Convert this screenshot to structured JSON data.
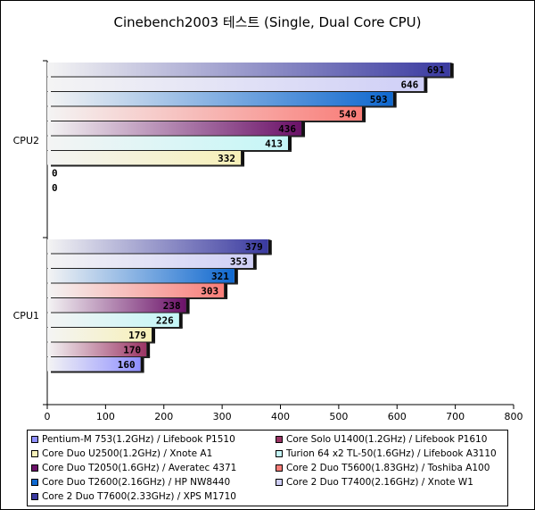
{
  "chart_data": {
    "type": "bar",
    "orientation": "horizontal",
    "title": "Cinebench2003 테스트 (Single, Dual Core CPU)",
    "xlabel": "",
    "ylabel": "",
    "xlim": [
      0,
      800
    ],
    "x_ticks": [
      "0",
      "100",
      "200",
      "300",
      "400",
      "500",
      "600",
      "700",
      "800"
    ],
    "categories": [
      "CPU2",
      "CPU1"
    ],
    "grid": false,
    "legend_position": "bottom",
    "series": [
      {
        "name": "Pentium-M 753(1.2GHz) / Lifebook P1510",
        "values": [
          0,
          160
        ],
        "labels": [
          "0",
          "160"
        ],
        "color": "#8f8fff"
      },
      {
        "name": "Core Solo U1400(1.2GHz) / Lifebook P1610",
        "values": [
          0,
          170
        ],
        "labels": [
          "0",
          "170"
        ],
        "color": "#9b3565"
      },
      {
        "name": "Core Duo U2500(1.2GHz) / Xnote A1",
        "values": [
          332,
          179
        ],
        "labels": [
          "332",
          "179"
        ],
        "color": "#f6f0b8"
      },
      {
        "name": "Turion 64 x2 TL-50(1.6GHz) / Lifebook A3110",
        "values": [
          413,
          226
        ],
        "labels": [
          "413",
          "226"
        ],
        "color": "#c4f6f7"
      },
      {
        "name": "Core Duo T2050(1.6GHz) / Averatec 4371",
        "values": [
          436,
          238
        ],
        "labels": [
          "436",
          "238"
        ],
        "color": "#6b1168"
      },
      {
        "name": "Core 2 Duo T5600(1.83GHz) / Toshiba A100",
        "values": [
          540,
          303
        ],
        "labels": [
          "540",
          "303"
        ],
        "color": "#f97d78"
      },
      {
        "name": "Core Duo T2600(2.16GHz) / HP NW8440",
        "values": [
          593,
          321
        ],
        "labels": [
          "593",
          "321"
        ],
        "color": "#0f68cf"
      },
      {
        "name": "Core 2 Duo T7400(2.16GHz) / Xnote W1",
        "values": [
          646,
          353
        ],
        "labels": [
          "646",
          "353"
        ],
        "color": "#cfcff7"
      },
      {
        "name": "Core 2 Duo T7600(2.33GHz) / XPS M1710",
        "values": [
          691,
          379
        ],
        "labels": [
          "691",
          "379"
        ],
        "color": "#3a3aa0"
      }
    ]
  }
}
